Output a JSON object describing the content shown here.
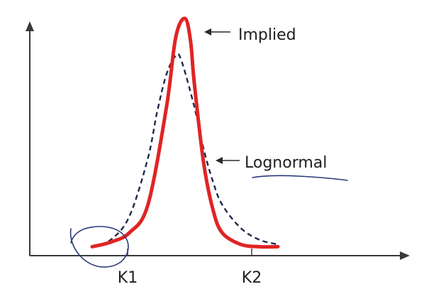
{
  "chart_data": {
    "type": "line",
    "title": "",
    "xlabel": "",
    "ylabel": "",
    "x_ticks": [
      "K1",
      "K2"
    ],
    "grid": false,
    "series": [
      {
        "name": "Implied",
        "style": "solid",
        "color": "#e02424",
        "x": [
          0.0,
          0.1,
          0.2,
          0.3,
          0.4,
          0.45,
          0.5,
          0.53,
          0.55,
          0.6,
          0.65,
          0.7,
          0.8,
          0.9,
          1.0
        ],
        "y": [
          0.02,
          0.04,
          0.08,
          0.2,
          0.62,
          0.92,
          1.0,
          0.9,
          0.72,
          0.38,
          0.18,
          0.08,
          0.03,
          0.02,
          0.02
        ]
      },
      {
        "name": "Lognormal",
        "style": "dashed",
        "color": "#1f2a4a",
        "x": [
          0.0,
          0.1,
          0.2,
          0.3,
          0.35,
          0.4,
          0.45,
          0.48,
          0.55,
          0.6,
          0.65,
          0.7,
          0.8,
          0.9,
          1.0
        ],
        "y": [
          0.02,
          0.05,
          0.15,
          0.4,
          0.6,
          0.76,
          0.84,
          0.82,
          0.62,
          0.44,
          0.3,
          0.2,
          0.1,
          0.05,
          0.03
        ]
      }
    ],
    "annotations": [
      {
        "text": "Implied",
        "target": "Implied"
      },
      {
        "text": "Lognormal",
        "target": "Lognormal"
      }
    ]
  },
  "colors": {
    "axis": "#3a3a3a",
    "implied": "#e02424",
    "lognormal": "#1f2a4a",
    "annotation_ink": "#2a3a7a"
  }
}
